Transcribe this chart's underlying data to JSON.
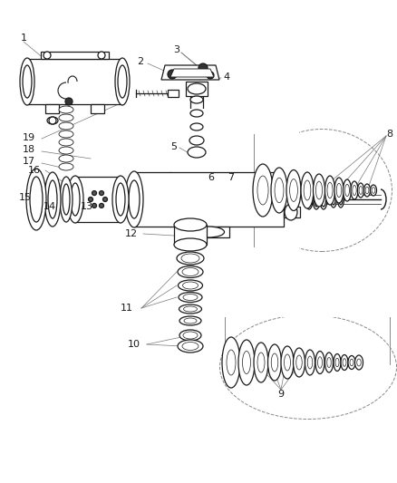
{
  "bg_color": "#ffffff",
  "line_color": "#1a1a1a",
  "gray": "#777777",
  "fig_width": 4.38,
  "fig_height": 5.33,
  "dpi": 100,
  "lw": 0.9,
  "thin": 0.5,
  "label_fs": 7.5
}
